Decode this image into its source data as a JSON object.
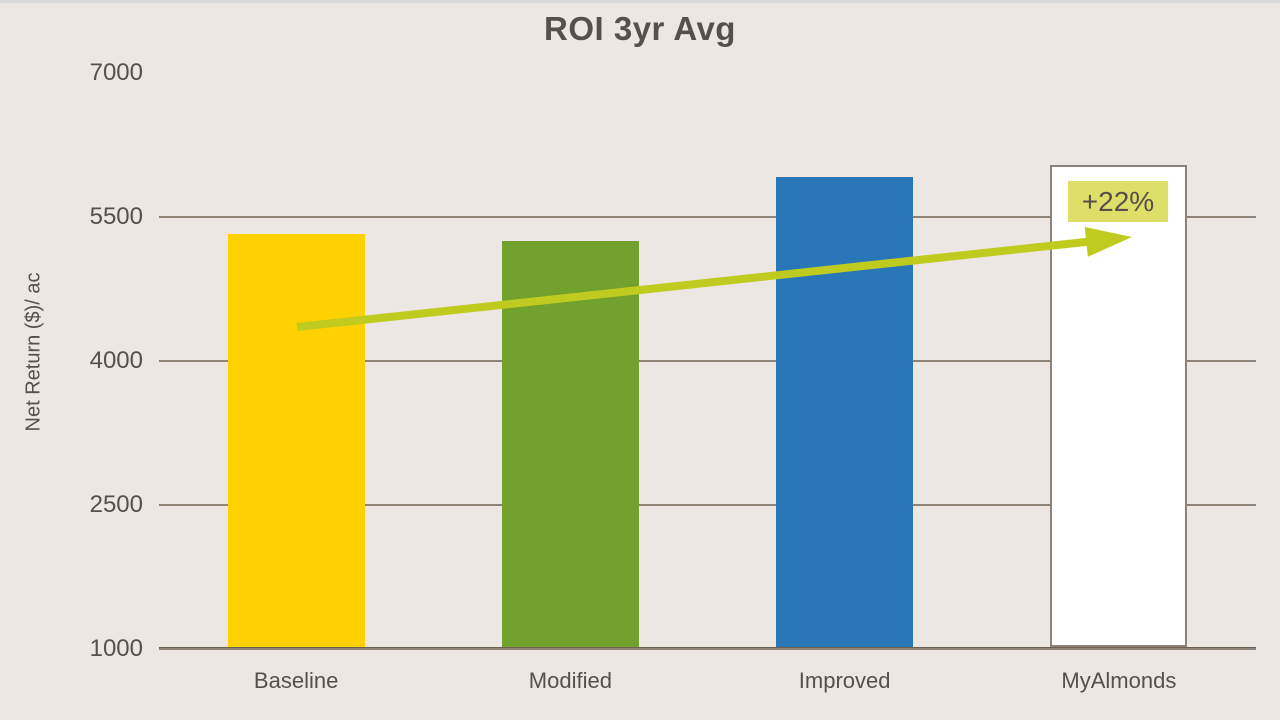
{
  "chart_data": {
    "type": "bar",
    "title": "ROI 3yr Avg",
    "ylabel": "Net Return ($)/ ac",
    "xlabel": "",
    "categories": [
      "Baseline",
      "Modified",
      "Improved",
      "MyAlmonds"
    ],
    "values": [
      5300,
      5225,
      5900,
      6025
    ],
    "bar_colors": [
      "#FFD100",
      "#72A22D",
      "#2A77B7",
      "#FFFFFF"
    ],
    "bar_border_colors": [
      "",
      "",
      "",
      "#8D8276"
    ],
    "ylim": [
      1000,
      7000
    ],
    "yticks": [
      1000,
      2500,
      4000,
      5500,
      7000
    ],
    "grid": true,
    "legend": false,
    "annotation": {
      "text": "+22%",
      "highlight_bg": "#DDDF69",
      "text_color": "#57504A",
      "arrow_color": "#C0CB1F"
    }
  },
  "colors": {
    "background": "#ECE7E2",
    "text": "#57504A",
    "gridline": "#8E8376",
    "axis_line": "#6B6052",
    "top_edge": "#D9D9D9"
  }
}
